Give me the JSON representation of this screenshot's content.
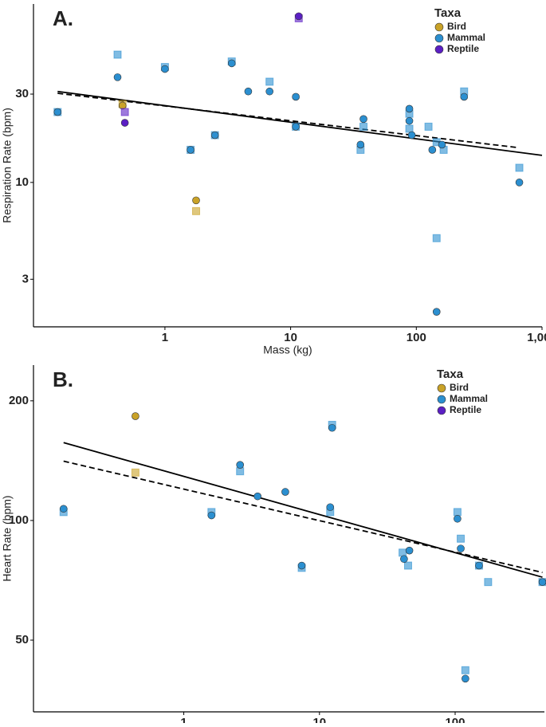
{
  "chart_data": [
    {
      "type": "scatter",
      "title": "A.",
      "x_label": "Mass (kg)",
      "y_label": "Respiration Rate (bpm)",
      "log_x": true,
      "log_y": true,
      "xlim": [
        0.09,
        1000
      ],
      "ylim": [
        1.66,
        92
      ],
      "xticks": [
        1,
        10,
        100,
        {
          "value": 1000,
          "label": "1,000"
        }
      ],
      "yticks": [
        3,
        10,
        30
      ],
      "legend_title": "Taxa",
      "legend_position": "top-right",
      "series": [
        {
          "name": "Bird",
          "color": "#c9a227",
          "x": [
            0.46,
            1.77
          ],
          "values": [
            26,
            8.0
          ],
          "square_x": [
            0.46,
            1.77
          ],
          "square_values": [
            26.5,
            7.0
          ]
        },
        {
          "name": "Mammal",
          "color": "#2b8fd0",
          "x": [
            0.14,
            0.42,
            1.0,
            1.6,
            2.5,
            3.4,
            4.6,
            6.8,
            11,
            11,
            36,
            38,
            88,
            88,
            92,
            134,
            160,
            240,
            660,
            145
          ],
          "values": [
            24,
            37,
            41,
            15,
            18,
            44,
            31,
            31,
            29,
            20,
            16,
            22,
            25,
            21.5,
            18,
            15,
            16,
            29,
            10,
            2.0
          ],
          "square_x": [
            0.14,
            0.42,
            1.0,
            1.6,
            2.5,
            3.4,
            6.8,
            11,
            36,
            38,
            88,
            88,
            125,
            145,
            165,
            240,
            660,
            145
          ],
          "square_values": [
            24,
            49,
            42,
            15,
            18,
            45,
            35,
            20,
            15,
            20,
            23.5,
            19.5,
            20,
            16.5,
            15,
            31,
            12,
            5.0
          ]
        },
        {
          "name": "Reptile",
          "color": "#5b1fc4",
          "x": [
            0.48,
            11.6
          ],
          "values": [
            21,
            79
          ],
          "square_x": [
            0.48,
            11.6
          ],
          "square_values": [
            24,
            77
          ]
        }
      ],
      "fit_lines": [
        {
          "style": "solid",
          "x": [
            0.14,
            1000
          ],
          "values": [
            31,
            14
          ]
        },
        {
          "style": "dashed",
          "x": [
            0.14,
            655
          ],
          "values": [
            30.3,
            15.4
          ]
        }
      ]
    },
    {
      "type": "scatter",
      "title": "B.",
      "x_label": "Mass (kg)",
      "y_label": "Heart Rate (bpm)",
      "log_x": true,
      "log_y": true,
      "xlim": [
        0.078,
        455
      ],
      "ylim": [
        33,
        246
      ],
      "xticks": [
        1,
        10,
        100
      ],
      "yticks": [
        50,
        100,
        200
      ],
      "legend_title": "Taxa",
      "legend_position": "top-right",
      "series": [
        {
          "name": "Bird",
          "color": "#c9a227",
          "x": [
            0.44
          ],
          "values": [
            183
          ],
          "square_x": [
            0.44
          ],
          "square_values": [
            132
          ]
        },
        {
          "name": "Mammal",
          "color": "#2b8fd0",
          "x": [
            0.13,
            1.6,
            2.6,
            3.5,
            5.6,
            7.4,
            12,
            12.4,
            42,
            46,
            104,
            110,
            150,
            119,
            440
          ],
          "values": [
            107,
            103,
            138,
            115,
            118,
            77,
            108,
            171,
            80,
            84,
            101,
            85,
            77,
            40,
            70
          ],
          "square_x": [
            0.13,
            1.6,
            2.6,
            7.4,
            12,
            12.4,
            41,
            45,
            104,
            110,
            150,
            175,
            119,
            440
          ],
          "square_values": [
            105,
            105,
            133,
            76,
            105,
            174,
            83,
            77,
            105,
            90,
            77,
            70,
            42,
            70
          ]
        },
        {
          "name": "Reptile",
          "color": "#5b1fc4",
          "x": [],
          "values": [],
          "square_x": [],
          "square_values": []
        }
      ],
      "fit_lines": [
        {
          "style": "solid",
          "x": [
            0.13,
            440
          ],
          "values": [
            157,
            72
          ]
        },
        {
          "style": "dashed",
          "x": [
            0.13,
            440
          ],
          "values": [
            141,
            74
          ]
        }
      ]
    }
  ]
}
